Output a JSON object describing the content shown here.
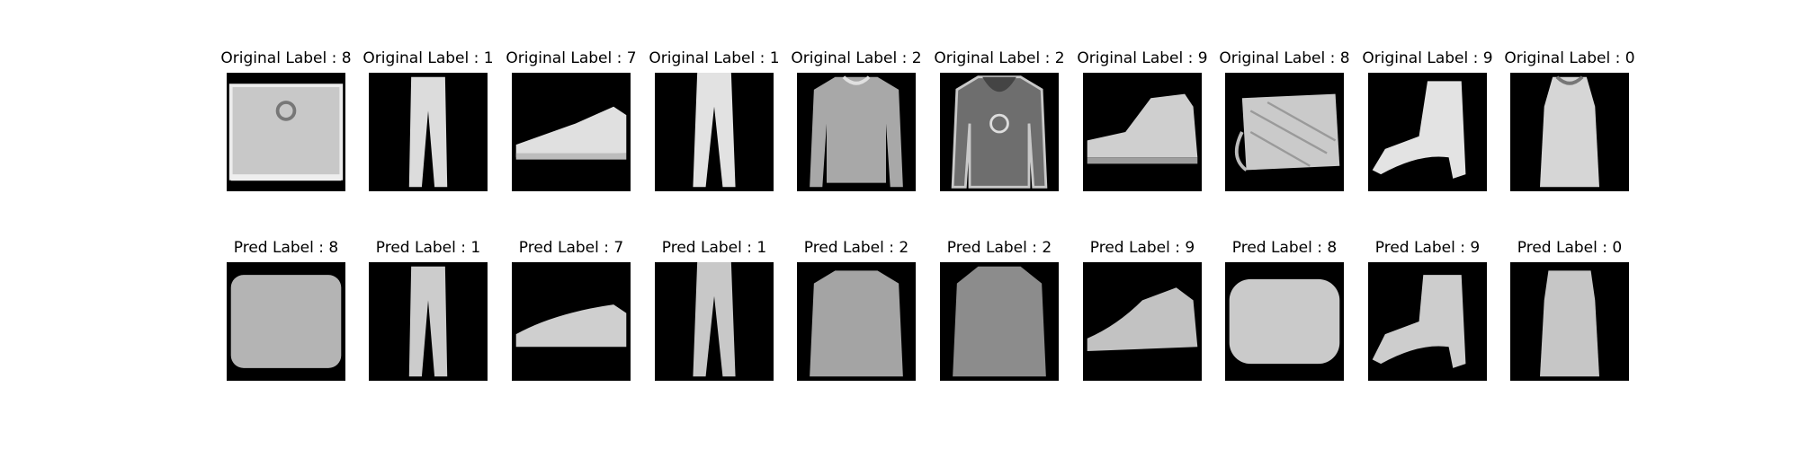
{
  "rows": [
    {
      "id": "original",
      "captions": [
        "Original Label : 8",
        "Original Label : 1",
        "Original Label : 7",
        "Original Label : 1",
        "Original Label : 2",
        "Original Label : 2",
        "Original Label : 9",
        "Original Label : 8",
        "Original Label : 9",
        "Original Label : 0"
      ]
    },
    {
      "id": "pred",
      "captions": [
        "Pred Label : 8",
        "Pred Label : 1",
        "Pred Label : 7",
        "Pred Label : 1",
        "Pred Label : 2",
        "Pred Label : 2",
        "Pred Label : 9",
        "Pred Label : 8",
        "Pred Label : 9",
        "Pred Label : 0"
      ]
    }
  ],
  "image_subjects": [
    "bag",
    "trouser",
    "sneaker",
    "trouser",
    "pullover",
    "pullover",
    "ankle-boot",
    "bag",
    "ankle-boot",
    "t-shirt"
  ],
  "colors": {
    "background": "#ffffff",
    "image_background": "#000000",
    "item_original": "#d9d9d9",
    "item_pred": "#c8c8c8"
  }
}
